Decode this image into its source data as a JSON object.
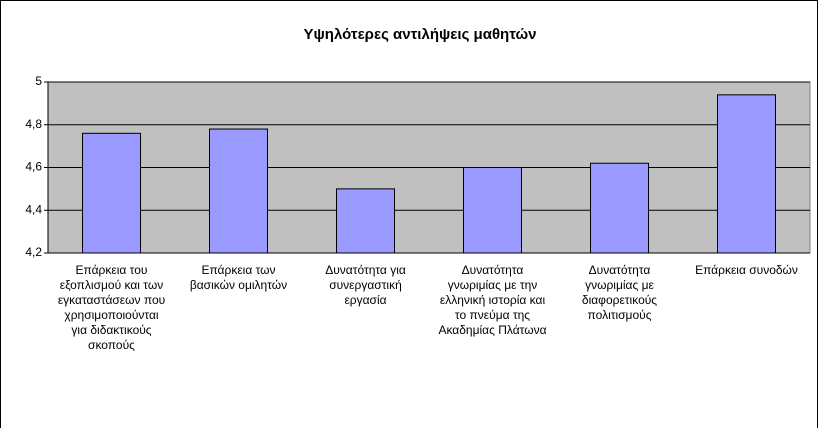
{
  "chart_data": {
    "type": "bar",
    "title": "Υψηλότερες αντιλήψεις μαθητών",
    "categories": [
      "Επάρκεια του εξοπλισμού και των εγκαταστάσεων που χρησιμοποιούνται για διδακτικούς σκοπούς",
      "Επάρκεια των βασικών ομιλητών",
      "Δυνατότητα για συνεργαστική εργασία",
      "Δυνατότητα γνωριμίας με την ελληνική ιστορία και το πνεύμα της Ακαδημίας Πλάτωνα",
      "Δυνατότητα γνωριμίας με διαφορετικούς πολιτισμούς",
      "Επάρκεια συνοδών"
    ],
    "values": [
      4.76,
      4.78,
      4.5,
      4.6,
      4.62,
      4.94
    ],
    "color": "#9999ff",
    "ylim": [
      4.2,
      5
    ],
    "yticks": [
      {
        "value": 4.2,
        "label": "4,2"
      },
      {
        "value": 4.4,
        "label": "4,4"
      },
      {
        "value": 4.6,
        "label": "4,6"
      },
      {
        "value": 4.8,
        "label": "4,8"
      },
      5
    ],
    "grid": true
  }
}
